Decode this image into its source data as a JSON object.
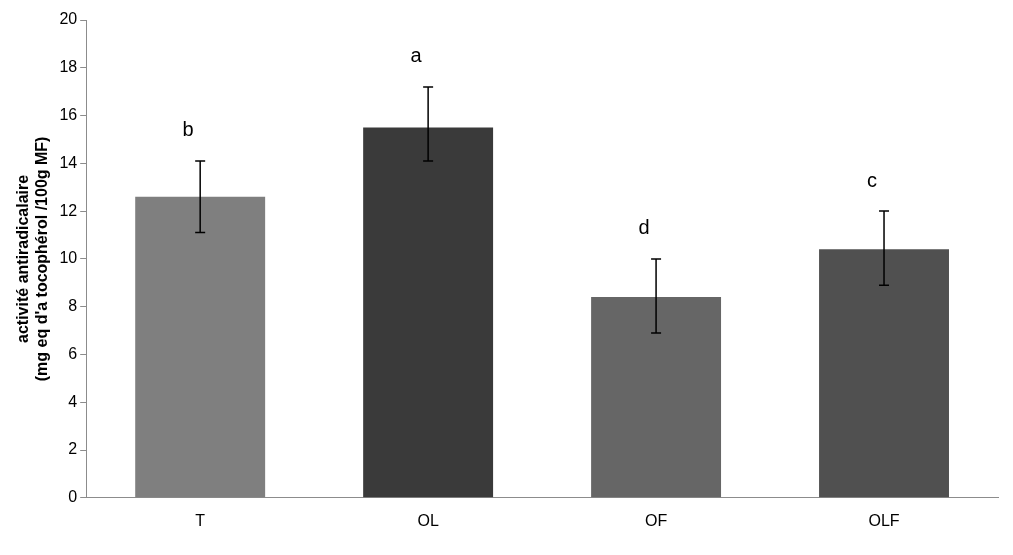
{
  "chart_data": {
    "type": "bar",
    "ylabel": "activité antiradicalaire\n(mg eq d'a tocophérol /100g MF)",
    "categories": [
      "T",
      "OL",
      "OF",
      "OLF"
    ],
    "values": [
      12.6,
      15.5,
      8.4,
      10.4
    ],
    "colors": [
      "#7f7f7f",
      "#3a3a3a",
      "#666666",
      "#505050"
    ],
    "errors": [
      [
        11.1,
        14.1
      ],
      [
        14.1,
        17.2
      ],
      [
        6.9,
        10.0
      ],
      [
        8.9,
        12.0
      ]
    ],
    "ylim": [
      0,
      20
    ],
    "yticks": [
      0,
      2,
      4,
      6,
      8,
      10,
      12,
      14,
      16,
      18,
      20
    ],
    "grid": false,
    "legend": false,
    "annotations": [
      "b",
      "a",
      "d",
      "c"
    ]
  }
}
